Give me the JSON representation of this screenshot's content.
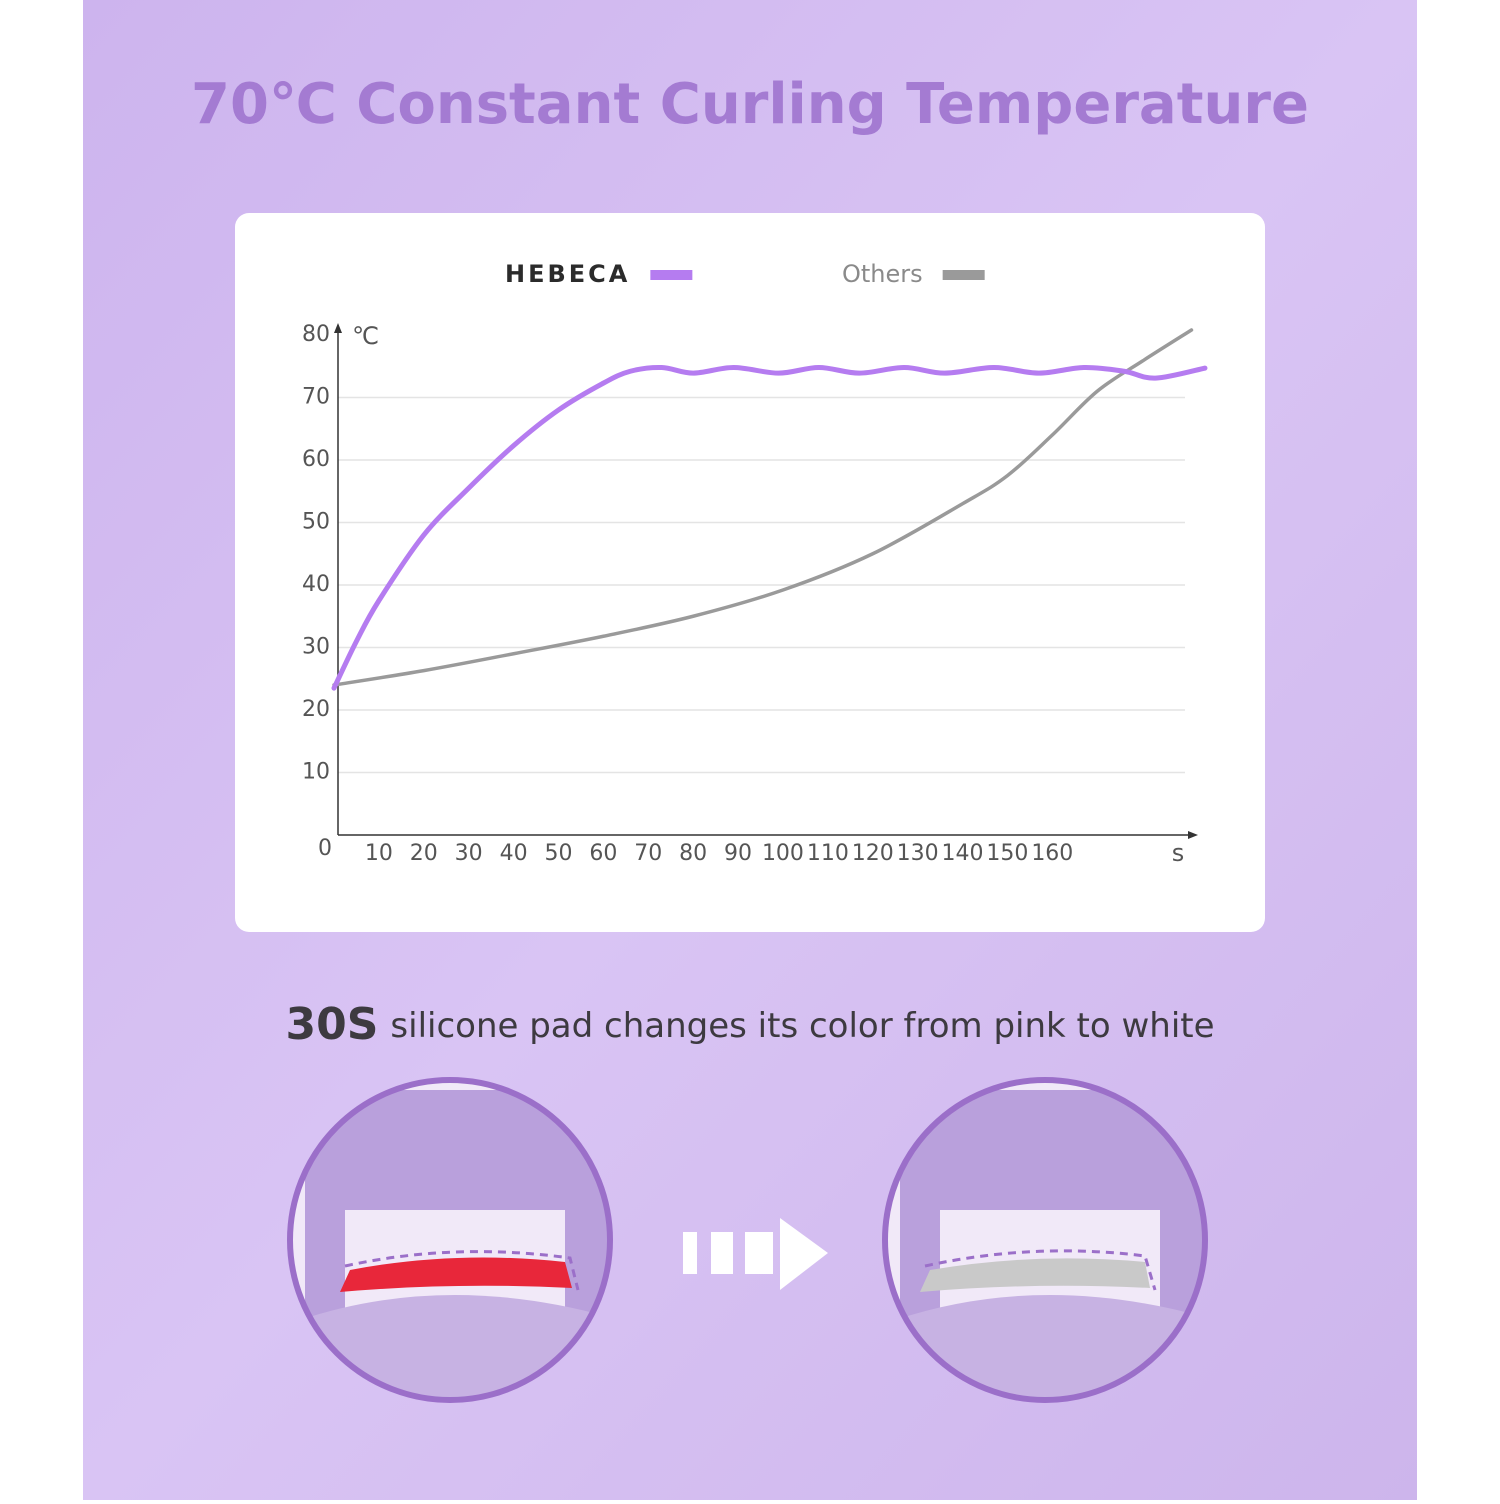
{
  "chart_data": {
    "type": "line",
    "title": "70℃ Constant Curling Temperature",
    "y_label": "℃",
    "x_label": "s",
    "xlim": [
      0,
      190
    ],
    "ylim": [
      0,
      80
    ],
    "xticks": [
      10,
      20,
      30,
      40,
      50,
      60,
      70,
      80,
      90,
      100,
      110,
      120,
      130,
      140,
      150,
      160
    ],
    "yticks": [
      0,
      10,
      20,
      30,
      40,
      50,
      60,
      70,
      80
    ],
    "grid": true,
    "series": [
      {
        "name": "HEBECA",
        "color": "#b57cf0",
        "x": [
          0,
          5,
          10,
          20,
          30,
          40,
          50,
          60,
          66,
          73,
          80,
          89,
          99,
          108,
          117,
          127,
          136,
          147,
          157,
          167,
          176,
          183,
          194
        ],
        "values": [
          23.5,
          31,
          37.5,
          48,
          55.5,
          62.3,
          68,
          72.3,
          74.2,
          74.8,
          73.9,
          74.8,
          73.9,
          74.8,
          73.9,
          74.8,
          73.9,
          74.8,
          73.9,
          74.8,
          74.2,
          73.1,
          74.7
        ]
      },
      {
        "name": "Others",
        "color": "#9a9a9a",
        "x": [
          0,
          20,
          40,
          60,
          80,
          100,
          120,
          140,
          150,
          160,
          170,
          180,
          191
        ],
        "values": [
          24,
          26.3,
          29,
          31.8,
          35,
          39.2,
          45,
          53,
          57.5,
          64,
          71,
          75.8,
          80.8
        ]
      }
    ]
  },
  "caption": {
    "highlight": "30S",
    "text": "silicone pad changes its color from pink to white"
  }
}
